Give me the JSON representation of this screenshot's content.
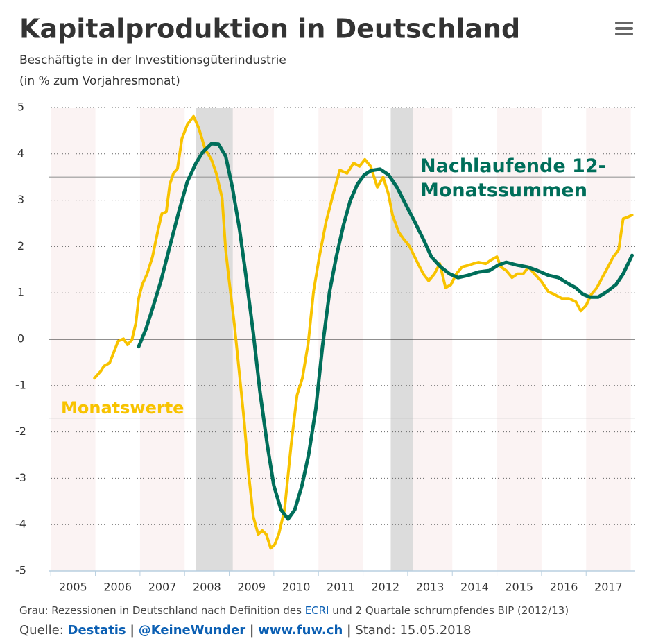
{
  "chart_data": {
    "type": "line",
    "title": "Kapitalproduktion in Deutschland",
    "subtitle": [
      "Beschäftigte in der Investitionsgüterindustrie",
      "(in % zum Vorjahresmonat)"
    ],
    "xlim": [
      2004.95,
      2018.1
    ],
    "xticks": [
      {
        "value": 2005.5,
        "label": "2005"
      },
      {
        "value": 2006.5,
        "label": "2006"
      },
      {
        "value": 2007.5,
        "label": "2007"
      },
      {
        "value": 2008.5,
        "label": "2008"
      },
      {
        "value": 2009.5,
        "label": "2009"
      },
      {
        "value": 2010.5,
        "label": "2010"
      },
      {
        "value": 2011.5,
        "label": "2011"
      },
      {
        "value": 2012.5,
        "label": "2012"
      },
      {
        "value": 2013.5,
        "label": "2013"
      },
      {
        "value": 2014.5,
        "label": "2014"
      },
      {
        "value": 2015.5,
        "label": "2015"
      },
      {
        "value": 2016.5,
        "label": "2016"
      },
      {
        "value": 2017.5,
        "label": "2017"
      }
    ],
    "ylim": [
      -5,
      5
    ],
    "yticks": [
      -5,
      -4,
      -3,
      -2,
      -1,
      0,
      1,
      2,
      3,
      4,
      5
    ],
    "grid": true,
    "recessions": [
      [
        2008.25,
        2009.08
      ],
      [
        2012.62,
        2013.12
      ]
    ],
    "reference_lines": [
      3.5,
      -1.7
    ],
    "series": [
      {
        "name": "Monatswerte",
        "color": "#f8c300",
        "x": [
          2005.98,
          2006.12,
          2006.19,
          2006.32,
          2006.43,
          2006.51,
          2006.63,
          2006.72,
          2006.82,
          2006.91,
          2006.97,
          2007.05,
          2007.16,
          2007.28,
          2007.41,
          2007.49,
          2007.59,
          2007.67,
          2007.75,
          2007.84,
          2007.94,
          2008.06,
          2008.2,
          2008.32,
          2008.46,
          2008.6,
          2008.71,
          2008.84,
          2008.92,
          2008.99,
          2009.12,
          2009.23,
          2009.34,
          2009.43,
          2009.54,
          2009.65,
          2009.74,
          2009.83,
          2009.93,
          2010.02,
          2010.11,
          2010.24,
          2010.39,
          2010.52,
          2010.64,
          2010.77,
          2010.89,
          2011.02,
          2011.17,
          2011.33,
          2011.48,
          2011.64,
          2011.79,
          2011.92,
          2012.04,
          2012.17,
          2012.32,
          2012.45,
          2012.57,
          2012.66,
          2012.8,
          2012.91,
          2013.04,
          2013.19,
          2013.35,
          2013.47,
          2013.6,
          2013.72,
          2013.85,
          2013.97,
          2014.09,
          2014.22,
          2014.34,
          2014.47,
          2014.59,
          2014.75,
          2014.87,
          2015.0,
          2015.09,
          2015.21,
          2015.34,
          2015.46,
          2015.59,
          2015.71,
          2015.84,
          2015.99,
          2016.15,
          2016.3,
          2016.46,
          2016.61,
          2016.77,
          2016.88,
          2017.0,
          2017.11,
          2017.24,
          2017.36,
          2017.49,
          2017.61,
          2017.73,
          2017.83,
          2017.92,
          2018.03
        ],
        "values": [
          -0.84,
          -0.69,
          -0.58,
          -0.51,
          -0.24,
          -0.04,
          0.01,
          -0.12,
          -0.01,
          0.36,
          0.88,
          1.18,
          1.41,
          1.78,
          2.38,
          2.71,
          2.75,
          3.35,
          3.58,
          3.68,
          4.33,
          4.63,
          4.81,
          4.55,
          4.1,
          3.88,
          3.58,
          3.05,
          1.93,
          1.33,
          0.28,
          -0.76,
          -1.81,
          -2.86,
          -3.83,
          -4.21,
          -4.13,
          -4.21,
          -4.51,
          -4.43,
          -4.21,
          -3.68,
          -2.26,
          -1.21,
          -0.84,
          -0.09,
          1.03,
          1.78,
          2.53,
          3.13,
          3.65,
          3.58,
          3.8,
          3.73,
          3.88,
          3.73,
          3.28,
          3.5,
          3.13,
          2.68,
          2.31,
          2.16,
          2.01,
          1.71,
          1.41,
          1.26,
          1.41,
          1.63,
          1.11,
          1.18,
          1.41,
          1.56,
          1.59,
          1.63,
          1.66,
          1.63,
          1.71,
          1.78,
          1.56,
          1.48,
          1.33,
          1.41,
          1.41,
          1.56,
          1.41,
          1.26,
          1.03,
          0.96,
          0.88,
          0.88,
          0.81,
          0.61,
          0.73,
          0.96,
          1.11,
          1.33,
          1.56,
          1.78,
          1.93,
          2.6,
          2.63,
          2.68
        ]
      },
      {
        "name": "Nachlaufende 12-Monatssummen",
        "color": "#006e5a",
        "x": [
          2006.97,
          2007.13,
          2007.28,
          2007.47,
          2007.67,
          2007.87,
          2008.06,
          2008.25,
          2008.4,
          2008.6,
          2008.76,
          2008.92,
          2009.07,
          2009.23,
          2009.38,
          2009.54,
          2009.69,
          2009.85,
          2010.0,
          2010.16,
          2010.32,
          2010.47,
          2010.63,
          2010.78,
          2010.94,
          2011.09,
          2011.25,
          2011.4,
          2011.56,
          2011.71,
          2011.87,
          2012.03,
          2012.18,
          2012.38,
          2012.57,
          2012.76,
          2012.96,
          2013.16,
          2013.35,
          2013.53,
          2013.74,
          2013.94,
          2014.13,
          2014.36,
          2014.59,
          2014.83,
          2015.03,
          2015.21,
          2015.45,
          2015.68,
          2015.91,
          2016.15,
          2016.38,
          2016.58,
          2016.77,
          2016.93,
          2017.08,
          2017.27,
          2017.47,
          2017.67,
          2017.83,
          2017.94,
          2018.03
        ],
        "values": [
          -0.16,
          0.21,
          0.66,
          1.26,
          2.01,
          2.75,
          3.4,
          3.79,
          4.03,
          4.22,
          4.21,
          3.95,
          3.28,
          2.38,
          1.33,
          0.13,
          -1.14,
          -2.26,
          -3.16,
          -3.68,
          -3.88,
          -3.68,
          -3.16,
          -2.49,
          -1.51,
          -0.16,
          1.03,
          1.78,
          2.46,
          2.98,
          3.34,
          3.55,
          3.64,
          3.67,
          3.55,
          3.28,
          2.9,
          2.53,
          2.16,
          1.78,
          1.56,
          1.41,
          1.33,
          1.38,
          1.45,
          1.48,
          1.6,
          1.66,
          1.6,
          1.56,
          1.48,
          1.38,
          1.33,
          1.21,
          1.11,
          0.97,
          0.91,
          0.91,
          1.03,
          1.18,
          1.41,
          1.63,
          1.81
        ]
      }
    ],
    "note": {
      "before": "Grau: Rezessionen in Deutschland nach Definition des",
      "link": "ECRI",
      "after": "und 2 Quartale schrumpfendes BIP (2012/13)"
    },
    "source": {
      "label": "Quelle:",
      "links": [
        "Destatis",
        "@KeineWunder",
        "www.fuw.ch"
      ],
      "separator": "|",
      "date": "Stand: 15.05.2018"
    }
  }
}
